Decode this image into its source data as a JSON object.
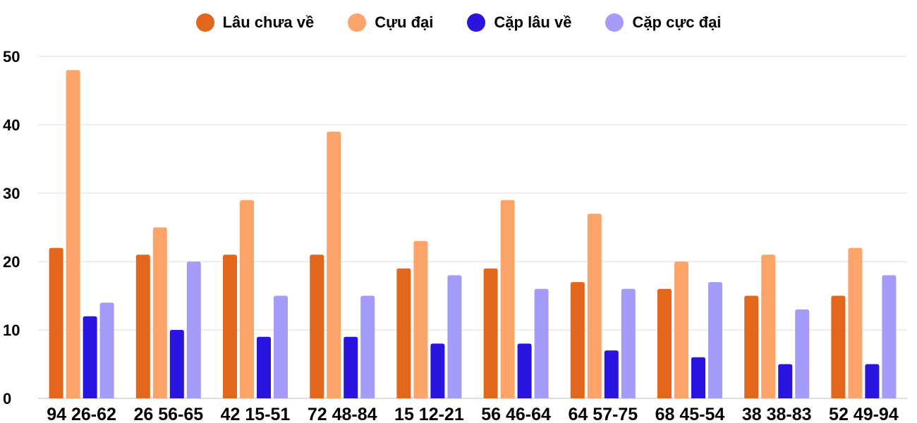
{
  "chart_data": {
    "type": "bar",
    "title": "",
    "xlabel": "",
    "ylabel": "",
    "ylim": [
      0,
      50
    ],
    "yticks": [
      0,
      10,
      20,
      30,
      40,
      50
    ],
    "grid": true,
    "legend_position": "top-center",
    "categories": [
      "94 26-62",
      "26 56-65",
      "42 15-51",
      "72 48-84",
      "15 12-21",
      "56 46-64",
      "64 57-75",
      "68 45-54",
      "38 38-83",
      "52 49-94"
    ],
    "series": [
      {
        "name": "Lâu chưa về",
        "color": "#e2661b",
        "values": [
          22,
          21,
          21,
          21,
          19,
          19,
          17,
          16,
          15,
          15
        ]
      },
      {
        "name": "Cựu đại",
        "color": "#fda46a",
        "values": [
          48,
          25,
          29,
          39,
          23,
          29,
          27,
          20,
          21,
          22
        ]
      },
      {
        "name": "Cặp lâu về",
        "color": "#2a14e0",
        "values": [
          12,
          10,
          9,
          9,
          8,
          8,
          7,
          6,
          5,
          5
        ]
      },
      {
        "name": "Cặp cực đại",
        "color": "#a49cf8",
        "values": [
          14,
          20,
          15,
          15,
          18,
          16,
          16,
          17,
          13,
          18
        ]
      }
    ]
  }
}
